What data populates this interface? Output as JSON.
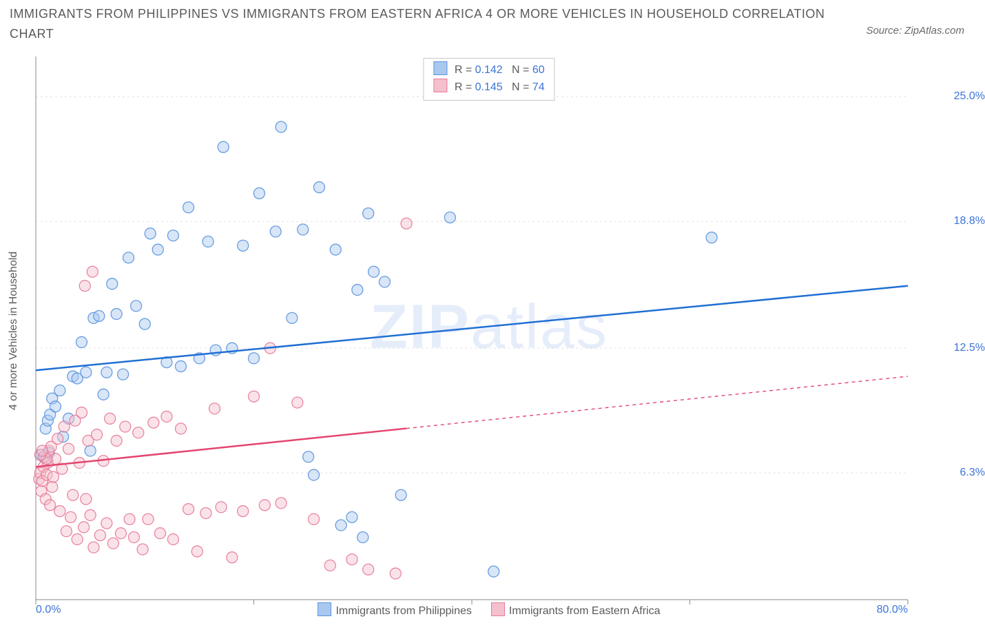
{
  "title": "IMMIGRANTS FROM PHILIPPINES VS IMMIGRANTS FROM EASTERN AFRICA 4 OR MORE VEHICLES IN HOUSEHOLD CORRELATION CHART",
  "source": "Source: ZipAtlas.com",
  "ylabel": "4 or more Vehicles in Household",
  "watermark_bold": "ZIP",
  "watermark_rest": "atlas",
  "chart": {
    "type": "scatter-with-regression",
    "background_color": "#ffffff",
    "grid_color": "#e2e2e2",
    "axis_color": "#8a8a8a",
    "tick_color": "#8a8a8a",
    "label_color": "#3a74d8",
    "text_color": "#5a5a5a",
    "xlim": [
      0,
      80
    ],
    "ylim": [
      0,
      27
    ],
    "xtick_positions": [
      0,
      20,
      40,
      60,
      80
    ],
    "xtick_labels": [
      "0.0%",
      "",
      "",
      "",
      "80.0%"
    ],
    "ytick_positions": [
      6.3,
      12.5,
      18.8,
      25.0
    ],
    "ytick_labels": [
      "6.3%",
      "12.5%",
      "18.8%",
      "25.0%"
    ],
    "marker_radius": 8,
    "marker_opacity": 0.45,
    "marker_stroke_opacity": 0.9,
    "line_width": 2.5
  },
  "series": [
    {
      "name": "Immigrants from Philippines",
      "color_fill": "#a9c8ef",
      "color_stroke": "#5a93dd",
      "line_color": "#1f6fd4",
      "reg_start": {
        "x": 0,
        "y": 11.4
      },
      "reg_end": {
        "x": 80,
        "y": 15.6
      },
      "reg_solid_to_x": 80,
      "R": "0.142",
      "N": "60",
      "points": [
        {
          "x": 0.5,
          "y": 7.2
        },
        {
          "x": 0.7,
          "y": 7.1
        },
        {
          "x": 0.9,
          "y": 8.5
        },
        {
          "x": 1.0,
          "y": 7.0
        },
        {
          "x": 1.1,
          "y": 8.9
        },
        {
          "x": 1.2,
          "y": 7.3
        },
        {
          "x": 1.3,
          "y": 9.2
        },
        {
          "x": 1.5,
          "y": 10.0
        },
        {
          "x": 1.8,
          "y": 9.6
        },
        {
          "x": 2.2,
          "y": 10.4
        },
        {
          "x": 2.5,
          "y": 8.1
        },
        {
          "x": 3.0,
          "y": 9.0
        },
        {
          "x": 3.4,
          "y": 11.1
        },
        {
          "x": 3.8,
          "y": 11.0
        },
        {
          "x": 4.2,
          "y": 12.8
        },
        {
          "x": 4.6,
          "y": 11.3
        },
        {
          "x": 5.0,
          "y": 7.4
        },
        {
          "x": 5.3,
          "y": 14.0
        },
        {
          "x": 5.8,
          "y": 14.1
        },
        {
          "x": 6.2,
          "y": 10.2
        },
        {
          "x": 6.5,
          "y": 11.3
        },
        {
          "x": 7.0,
          "y": 15.7
        },
        {
          "x": 7.4,
          "y": 14.2
        },
        {
          "x": 8.0,
          "y": 11.2
        },
        {
          "x": 8.5,
          "y": 17.0
        },
        {
          "x": 9.2,
          "y": 14.6
        },
        {
          "x": 10.0,
          "y": 13.7
        },
        {
          "x": 10.5,
          "y": 18.2
        },
        {
          "x": 11.2,
          "y": 17.4
        },
        {
          "x": 12.0,
          "y": 11.8
        },
        {
          "x": 12.6,
          "y": 18.1
        },
        {
          "x": 13.3,
          "y": 11.6
        },
        {
          "x": 14.0,
          "y": 19.5
        },
        {
          "x": 15.0,
          "y": 12.0
        },
        {
          "x": 15.8,
          "y": 17.8
        },
        {
          "x": 16.5,
          "y": 12.4
        },
        {
          "x": 17.2,
          "y": 22.5
        },
        {
          "x": 18.0,
          "y": 12.5
        },
        {
          "x": 19.0,
          "y": 17.6
        },
        {
          "x": 20.0,
          "y": 12.0
        },
        {
          "x": 20.5,
          "y": 20.2
        },
        {
          "x": 22.0,
          "y": 18.3
        },
        {
          "x": 22.5,
          "y": 23.5
        },
        {
          "x": 23.5,
          "y": 14.0
        },
        {
          "x": 24.5,
          "y": 18.4
        },
        {
          "x": 25.0,
          "y": 7.1
        },
        {
          "x": 25.5,
          "y": 6.2
        },
        {
          "x": 26.0,
          "y": 20.5
        },
        {
          "x": 27.5,
          "y": 17.4
        },
        {
          "x": 28.0,
          "y": 3.7
        },
        {
          "x": 29.0,
          "y": 4.1
        },
        {
          "x": 29.5,
          "y": 15.4
        },
        {
          "x": 30.0,
          "y": 3.1
        },
        {
          "x": 31.0,
          "y": 16.3
        },
        {
          "x": 32.0,
          "y": 15.8
        },
        {
          "x": 33.5,
          "y": 5.2
        },
        {
          "x": 38.0,
          "y": 19.0
        },
        {
          "x": 42.0,
          "y": 1.4
        },
        {
          "x": 62.0,
          "y": 18.0
        },
        {
          "x": 30.5,
          "y": 19.2
        }
      ]
    },
    {
      "name": "Immigrants from Eastern Africa",
      "color_fill": "#f4c0cd",
      "color_stroke": "#e77a99",
      "line_color": "#e3456e",
      "reg_start": {
        "x": 0,
        "y": 6.6
      },
      "reg_end": {
        "x": 80,
        "y": 11.1
      },
      "reg_solid_to_x": 34,
      "R": "0.145",
      "N": "74",
      "points": [
        {
          "x": 0.3,
          "y": 6.0
        },
        {
          "x": 0.4,
          "y": 6.3
        },
        {
          "x": 0.5,
          "y": 5.4
        },
        {
          "x": 0.6,
          "y": 5.9
        },
        {
          "x": 0.7,
          "y": 6.6
        },
        {
          "x": 0.8,
          "y": 7.1
        },
        {
          "x": 0.9,
          "y": 5.0
        },
        {
          "x": 1.0,
          "y": 6.2
        },
        {
          "x": 1.1,
          "y": 6.8
        },
        {
          "x": 1.2,
          "y": 7.4
        },
        {
          "x": 1.3,
          "y": 4.7
        },
        {
          "x": 1.4,
          "y": 7.6
        },
        {
          "x": 1.5,
          "y": 5.6
        },
        {
          "x": 1.6,
          "y": 6.1
        },
        {
          "x": 1.8,
          "y": 7.0
        },
        {
          "x": 2.0,
          "y": 8.0
        },
        {
          "x": 2.2,
          "y": 4.4
        },
        {
          "x": 2.4,
          "y": 6.5
        },
        {
          "x": 2.6,
          "y": 8.6
        },
        {
          "x": 2.8,
          "y": 3.4
        },
        {
          "x": 3.0,
          "y": 7.5
        },
        {
          "x": 3.2,
          "y": 4.1
        },
        {
          "x": 3.4,
          "y": 5.2
        },
        {
          "x": 3.6,
          "y": 8.9
        },
        {
          "x": 3.8,
          "y": 3.0
        },
        {
          "x": 4.0,
          "y": 6.8
        },
        {
          "x": 4.2,
          "y": 9.3
        },
        {
          "x": 4.4,
          "y": 3.6
        },
        {
          "x": 4.6,
          "y": 5.0
        },
        {
          "x": 4.8,
          "y": 7.9
        },
        {
          "x": 5.0,
          "y": 4.2
        },
        {
          "x": 5.3,
          "y": 2.6
        },
        {
          "x": 5.6,
          "y": 8.2
        },
        {
          "x": 5.9,
          "y": 3.2
        },
        {
          "x": 6.2,
          "y": 6.9
        },
        {
          "x": 6.5,
          "y": 3.8
        },
        {
          "x": 6.8,
          "y": 9.0
        },
        {
          "x": 7.1,
          "y": 2.8
        },
        {
          "x": 7.4,
          "y": 7.9
        },
        {
          "x": 7.8,
          "y": 3.3
        },
        {
          "x": 8.2,
          "y": 8.6
        },
        {
          "x": 8.6,
          "y": 4.0
        },
        {
          "x": 9.0,
          "y": 3.1
        },
        {
          "x": 9.4,
          "y": 8.3
        },
        {
          "x": 9.8,
          "y": 2.5
        },
        {
          "x": 10.3,
          "y": 4.0
        },
        {
          "x": 10.8,
          "y": 8.8
        },
        {
          "x": 11.4,
          "y": 3.3
        },
        {
          "x": 12.0,
          "y": 9.1
        },
        {
          "x": 12.6,
          "y": 3.0
        },
        {
          "x": 13.3,
          "y": 8.5
        },
        {
          "x": 14.0,
          "y": 4.5
        },
        {
          "x": 14.8,
          "y": 2.4
        },
        {
          "x": 15.6,
          "y": 4.3
        },
        {
          "x": 16.4,
          "y": 9.5
        },
        {
          "x": 17.0,
          "y": 4.6
        },
        {
          "x": 18.0,
          "y": 2.1
        },
        {
          "x": 19.0,
          "y": 4.4
        },
        {
          "x": 20.0,
          "y": 10.1
        },
        {
          "x": 21.0,
          "y": 4.7
        },
        {
          "x": 21.5,
          "y": 12.5
        },
        {
          "x": 22.5,
          "y": 4.8
        },
        {
          "x": 24.0,
          "y": 9.8
        },
        {
          "x": 25.5,
          "y": 4.0
        },
        {
          "x": 27.0,
          "y": 1.7
        },
        {
          "x": 29.0,
          "y": 2.0
        },
        {
          "x": 30.5,
          "y": 1.5
        },
        {
          "x": 33.0,
          "y": 1.3
        },
        {
          "x": 34.0,
          "y": 18.7
        },
        {
          "x": 4.5,
          "y": 15.6
        },
        {
          "x": 5.2,
          "y": 16.3
        },
        {
          "x": 1.0,
          "y": 7.0
        },
        {
          "x": 0.4,
          "y": 7.2
        },
        {
          "x": 0.6,
          "y": 7.4
        }
      ]
    }
  ],
  "bottom_legend": [
    {
      "label": "Immigrants from Philippines",
      "fill": "#a9c8ef",
      "stroke": "#5a93dd"
    },
    {
      "label": "Immigrants from Eastern Africa",
      "fill": "#f4c0cd",
      "stroke": "#e77a99"
    }
  ]
}
